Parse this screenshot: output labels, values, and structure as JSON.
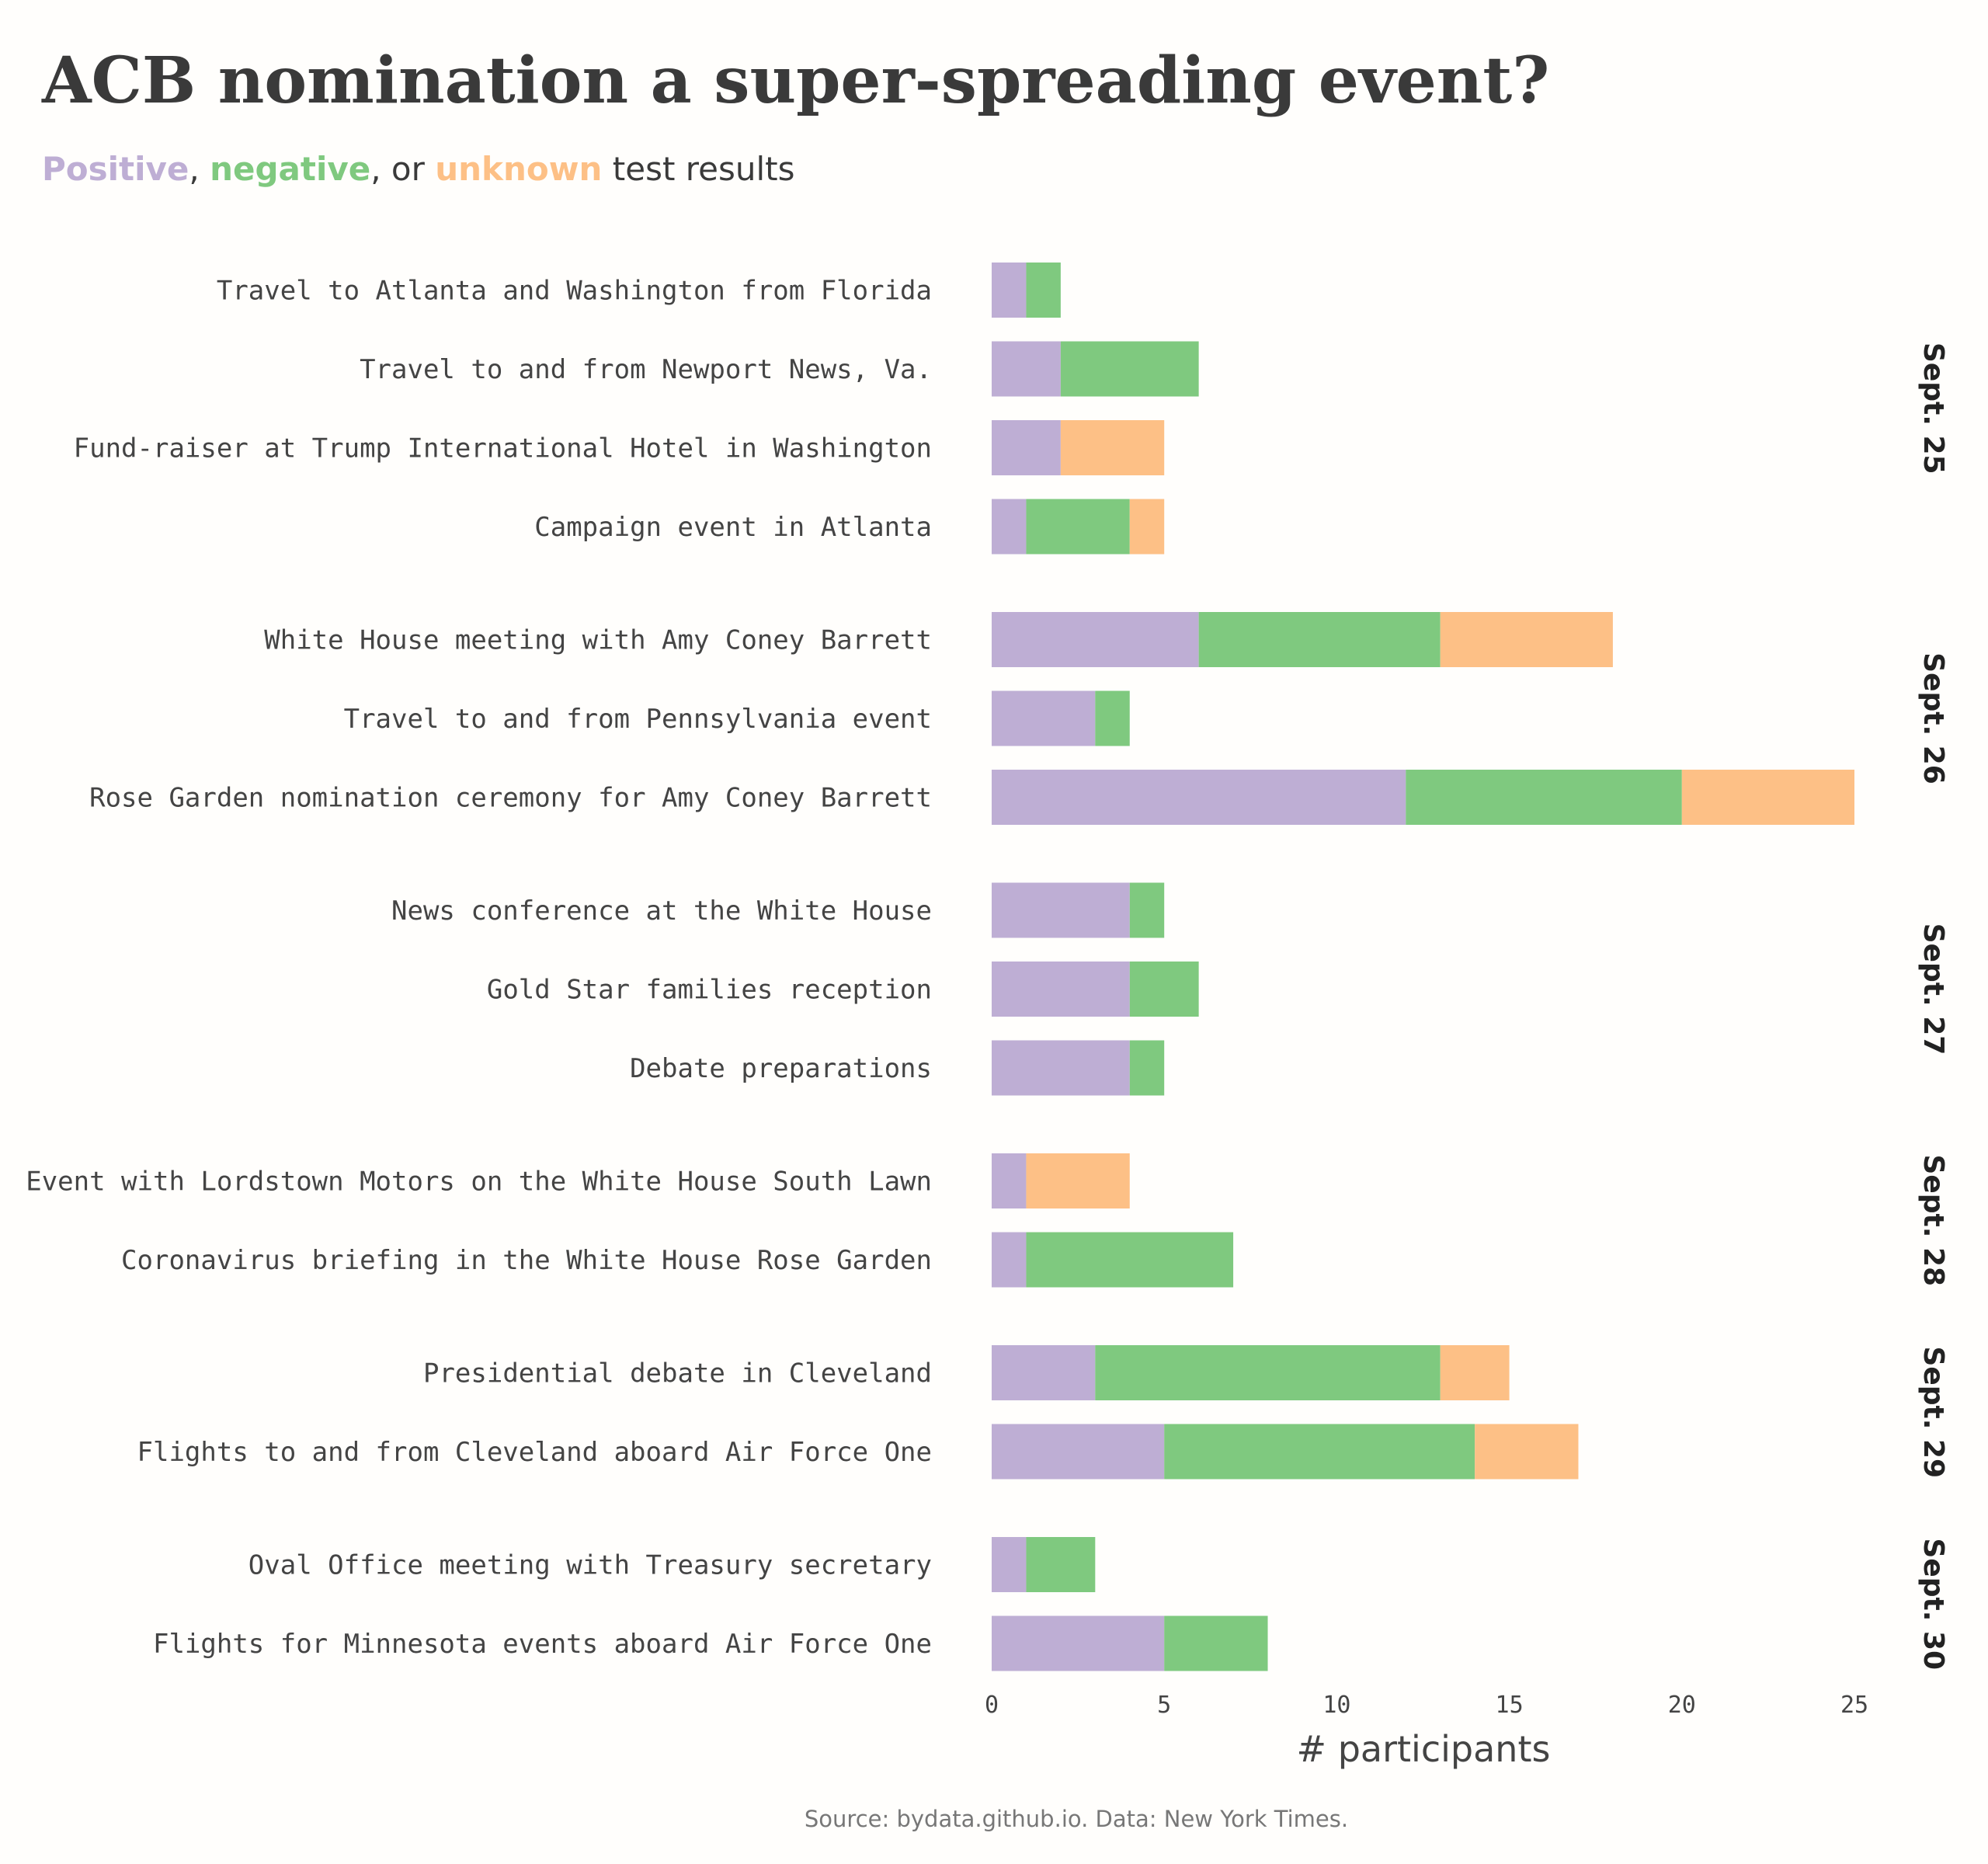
{
  "title": "ACB nomination a super-spreading event?",
  "subtitle": {
    "positive": "Positive",
    "sep1": ", ",
    "negative": "negative",
    "sep2": ", or ",
    "unknown": "unknown",
    "rest": " test results"
  },
  "source": "Source: bydata.github.io. Data: New York Times.",
  "colors": {
    "positive": "#beaed4",
    "negative": "#7fc97f",
    "unknown": "#fdc086"
  },
  "chart_data": {
    "type": "bar",
    "orientation": "horizontal",
    "stacked": true,
    "xlabel": "# participants",
    "xlim": [
      0,
      25
    ],
    "xticks": [
      0,
      5,
      10,
      15,
      20,
      25
    ],
    "series_names": [
      "Positive",
      "negative",
      "unknown"
    ],
    "facets": [
      {
        "label": "Sept. 25",
        "rows": [
          {
            "label": "Travel to Atlanta and Washington from Florida",
            "positive": 1,
            "negative": 1,
            "unknown": 0
          },
          {
            "label": "Travel to and from Newport News, Va.",
            "positive": 2,
            "negative": 4,
            "unknown": 0
          },
          {
            "label": "Fund-raiser at Trump International Hotel in Washington",
            "positive": 2,
            "negative": 0,
            "unknown": 3
          },
          {
            "label": "Campaign event in Atlanta",
            "positive": 1,
            "negative": 3,
            "unknown": 1
          }
        ]
      },
      {
        "label": "Sept. 26",
        "rows": [
          {
            "label": "White House meeting with Amy Coney Barrett",
            "positive": 6,
            "negative": 7,
            "unknown": 5
          },
          {
            "label": "Travel to and from Pennsylvania event",
            "positive": 3,
            "negative": 1,
            "unknown": 0
          },
          {
            "label": "Rose Garden nomination ceremony for Amy Coney Barrett",
            "positive": 12,
            "negative": 8,
            "unknown": 5
          }
        ]
      },
      {
        "label": "Sept. 27",
        "rows": [
          {
            "label": "News conference at the White House",
            "positive": 4,
            "negative": 1,
            "unknown": 0
          },
          {
            "label": "Gold Star families reception",
            "positive": 4,
            "negative": 2,
            "unknown": 0
          },
          {
            "label": "Debate preparations",
            "positive": 4,
            "negative": 1,
            "unknown": 0
          }
        ]
      },
      {
        "label": "Sept. 28",
        "rows": [
          {
            "label": "Event with Lordstown Motors on the White House South Lawn",
            "positive": 1,
            "negative": 0,
            "unknown": 3
          },
          {
            "label": "Coronavirus briefing in the White House Rose Garden",
            "positive": 1,
            "negative": 6,
            "unknown": 0
          }
        ]
      },
      {
        "label": "Sept. 29",
        "rows": [
          {
            "label": "Presidential debate in Cleveland",
            "positive": 3,
            "negative": 10,
            "unknown": 2
          },
          {
            "label": "Flights to and from Cleveland aboard Air Force One",
            "positive": 5,
            "negative": 9,
            "unknown": 3
          }
        ]
      },
      {
        "label": "Sept. 30",
        "rows": [
          {
            "label": "Oval Office meeting with Treasury secretary",
            "positive": 1,
            "negative": 2,
            "unknown": 0
          },
          {
            "label": "Flights for Minnesota events aboard Air Force One",
            "positive": 5,
            "negative": 3,
            "unknown": 0
          }
        ]
      }
    ]
  }
}
